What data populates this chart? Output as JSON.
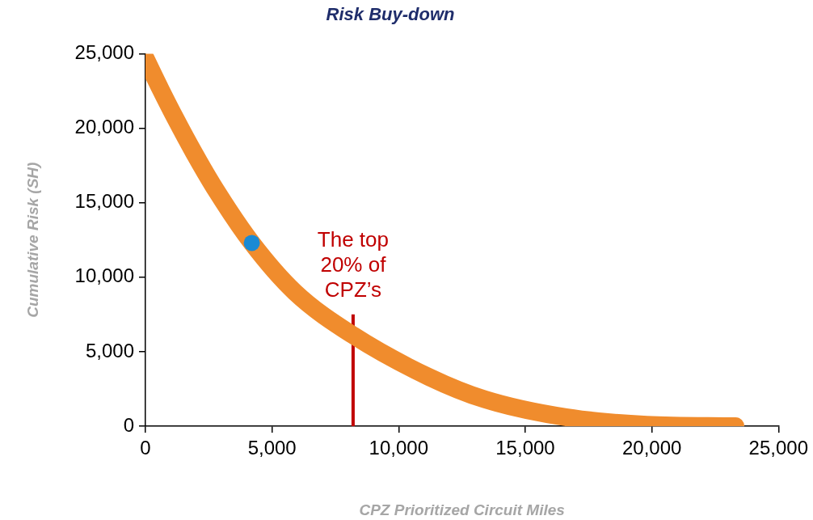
{
  "chart_data": {
    "type": "line",
    "title": "Risk Buy-down",
    "xlabel": "CPZ Prioritized Circuit Miles",
    "ylabel": "Cumulative Risk (SH)",
    "series": [
      {
        "type": "line",
        "color": "#f08c2d",
        "x": [
          0,
          600,
          1200,
          1900,
          2800,
          4200,
          5900,
          8200,
          11200,
          13400,
          16600,
          19800,
          23300
        ],
        "values": [
          24700,
          22600,
          20600,
          18400,
          15800,
          12300,
          9000,
          6100,
          3300,
          1800,
          600,
          100,
          0
        ]
      },
      {
        "type": "scatter",
        "color": "#1a8ad4",
        "x": [
          4200
        ],
        "values": [
          12300
        ]
      },
      {
        "type": "line",
        "color": "#c00000",
        "x": [
          8200,
          8200
        ],
        "values": [
          0,
          7500
        ]
      }
    ],
    "annotations": [
      {
        "text": "The top 20% of CPZ’s",
        "x": 8200,
        "y": 7500
      }
    ],
    "xlim": [
      0,
      25000
    ],
    "ylim": [
      0,
      25000
    ],
    "xticks": [
      0,
      {
        "value": 5000,
        "label": "5,000"
      },
      {
        "value": 10000,
        "label": "10,000"
      },
      {
        "value": 15000,
        "label": "15,000"
      },
      {
        "value": 20000,
        "label": "20,000"
      },
      {
        "value": 25000,
        "label": "25,000"
      }
    ],
    "yticks": [
      0,
      {
        "value": 5000,
        "label": "5,000"
      },
      {
        "value": 10000,
        "label": "10,000"
      },
      {
        "value": 15000,
        "label": "15,000"
      },
      {
        "value": 20000,
        "label": "20,000"
      },
      {
        "value": 25000,
        "label": "25,000"
      }
    ],
    "grid": false,
    "legend": false
  }
}
